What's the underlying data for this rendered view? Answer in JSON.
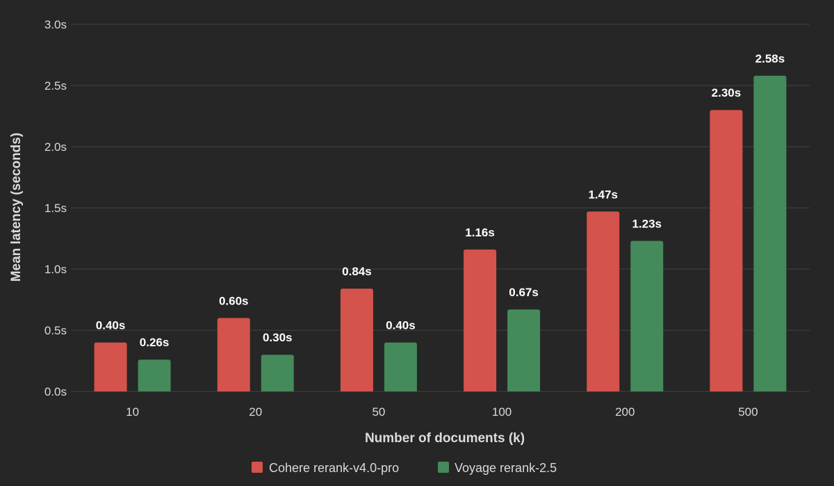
{
  "chart_data": {
    "type": "bar",
    "categories": [
      "10",
      "20",
      "50",
      "100",
      "200",
      "500"
    ],
    "series": [
      {
        "name": "Cohere rerank-v4.0-pro",
        "color": "#d4534c",
        "values": [
          0.4,
          0.6,
          0.84,
          1.16,
          1.47,
          2.3
        ],
        "labels": [
          "0.40s",
          "0.60s",
          "0.84s",
          "1.16s",
          "1.47s",
          "2.30s"
        ]
      },
      {
        "name": "Voyage rerank-2.5",
        "color": "#448a5a",
        "values": [
          0.26,
          0.3,
          0.4,
          0.67,
          1.23,
          2.58
        ],
        "labels": [
          "0.26s",
          "0.30s",
          "0.40s",
          "0.67s",
          "1.23s",
          "2.58s"
        ]
      }
    ],
    "xlabel": "Number of documents (k)",
    "ylabel": "Mean latency (seconds)",
    "ylim": [
      0,
      3.0
    ],
    "yticks": [
      0.0,
      0.5,
      1.0,
      1.5,
      2.0,
      2.5,
      3.0
    ],
    "ytick_labels": [
      "0.0s",
      "0.5s",
      "1.0s",
      "1.5s",
      "2.0s",
      "2.5s",
      "3.0s"
    ],
    "grid": true,
    "legend_position": "bottom-center",
    "background": "#262626",
    "grid_color": "#3e3e3e"
  }
}
